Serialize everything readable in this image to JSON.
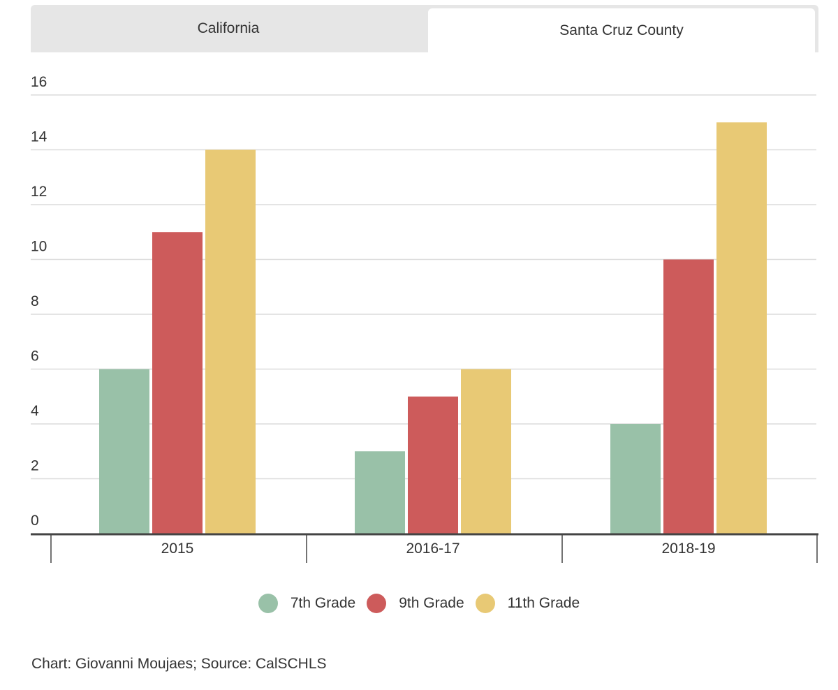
{
  "tabs": {
    "california": "California",
    "santa_cruz": "Santa Cruz County"
  },
  "chart_data": {
    "type": "bar",
    "categories": [
      "2015",
      "2016-17",
      "2018-19"
    ],
    "series": [
      {
        "name": "7th Grade",
        "color": "#99c1a8",
        "values": [
          6,
          3,
          4
        ]
      },
      {
        "name": "9th Grade",
        "color": "#cd5b5b",
        "values": [
          11,
          5,
          10
        ]
      },
      {
        "name": "11th Grade",
        "color": "#e8c975",
        "values": [
          14,
          6,
          15
        ]
      }
    ],
    "yticks": [
      0,
      2,
      4,
      6,
      8,
      10,
      12,
      14,
      16
    ],
    "ylim": [
      0,
      16
    ],
    "grid": true,
    "legend": "bottom-center",
    "title": "",
    "xlabel": "",
    "ylabel": ""
  },
  "legend": {
    "items": [
      "7th Grade",
      "9th Grade",
      "11th Grade"
    ]
  },
  "credit": "Chart: Giovanni Moujaes; Source: CalSCHLS"
}
